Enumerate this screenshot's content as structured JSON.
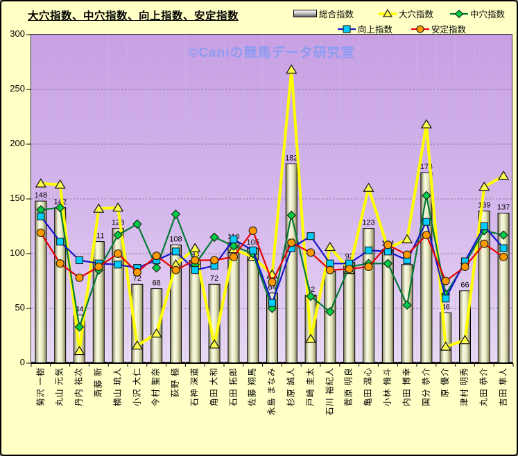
{
  "title": "大穴指数、中穴指数、向上指数、安定指数",
  "watermark": "©Caniの競馬データ研究室",
  "legend": {
    "items": [
      {
        "label": "総合指数",
        "marker": "bar"
      },
      {
        "label": "大穴指数",
        "marker": "triangle"
      },
      {
        "label": "中穴指数",
        "marker": "diamond"
      },
      {
        "label": "向上指数",
        "marker": "square"
      },
      {
        "label": "安定指数",
        "marker": "circle"
      }
    ]
  },
  "colors": {
    "frame_bg": "#FFFFC6",
    "plot_bg_top": "#C7A0E4",
    "plot_bg_bottom": "#E9DBF5",
    "bar_fill": "#EDEDC4",
    "watermark": "#7D9BF5"
  },
  "chart_data": {
    "type": "bar",
    "subtype": "bar-line-combo",
    "title": "大穴指数、中穴指数、向上指数、安定指数",
    "xlabel": "",
    "ylabel": "",
    "ylim": [
      0,
      300
    ],
    "y_ticks": [
      300,
      250,
      200,
      150,
      100,
      50,
      0
    ],
    "grid": "dashed horizontal and vertical",
    "legend_position": "top-right",
    "categories": [
      "菊沢 一樹",
      "丸山 元気",
      "丹内 祐次",
      "斎藤 新",
      "横山 琉人",
      "小沢 大仁",
      "今村 聖奈",
      "荻野 極",
      "石神 深道",
      "角田 大和",
      "石田 拓郎",
      "佐藤 翔馬",
      "永島 まなみ",
      "杉原 誠人",
      "戸崎 圭太",
      "石川 裕紀人",
      "菅原 明良",
      "亀田 温心",
      "小林 脩斗",
      "内田 博幸",
      "国分 恭介",
      "原 優介",
      "津村 明秀",
      "丸田 恭介",
      "吉田 隼人"
    ],
    "bar_series": {
      "name": "総合指数",
      "values": [
        148,
        142,
        44,
        111,
        123,
        72,
        68,
        108,
        94,
        72,
        110,
        105,
        64,
        182,
        62,
        84,
        92,
        123,
        104,
        90,
        174,
        46,
        66,
        139,
        137
      ]
    },
    "line_series": [
      {
        "name": "大穴指数",
        "marker": "triangle",
        "color": "#FFFF00",
        "marker_color": "#FFFF4D",
        "line_width": 4,
        "values": [
          164,
          163,
          11,
          141,
          142,
          16,
          27,
          90,
          105,
          17,
          104,
          97,
          81,
          268,
          22,
          106,
          85,
          160,
          105,
          113,
          218,
          15,
          21,
          161,
          171
        ]
      },
      {
        "name": "中穴指数",
        "marker": "diamond",
        "color": "#007A33",
        "marker_color": "#00CC44",
        "line_width": 2.2,
        "values": [
          140,
          142,
          33,
          85,
          117,
          127,
          87,
          136,
          90,
          115,
          107,
          100,
          50,
          135,
          61,
          47,
          88,
          91,
          91,
          53,
          153,
          63,
          91,
          121,
          117
        ]
      },
      {
        "name": "向上指数",
        "marker": "square",
        "color": "#1414CC",
        "marker_color": "#00CCFF",
        "line_width": 2.2,
        "values": [
          134,
          111,
          94,
          91,
          90,
          87,
          94,
          102,
          85,
          89,
          113,
          103,
          55,
          105,
          116,
          91,
          91,
          103,
          102,
          94,
          129,
          59,
          93,
          125,
          105
        ]
      },
      {
        "name": "安定指数",
        "marker": "circle",
        "color": "#E80000",
        "marker_color": "#FF9900",
        "line_width": 2.2,
        "values": [
          119,
          91,
          78,
          88,
          100,
          83,
          98,
          85,
          94,
          94,
          97,
          121,
          74,
          110,
          101,
          85,
          86,
          88,
          108,
          99,
          117,
          75,
          88,
          109,
          97
        ]
      }
    ]
  }
}
